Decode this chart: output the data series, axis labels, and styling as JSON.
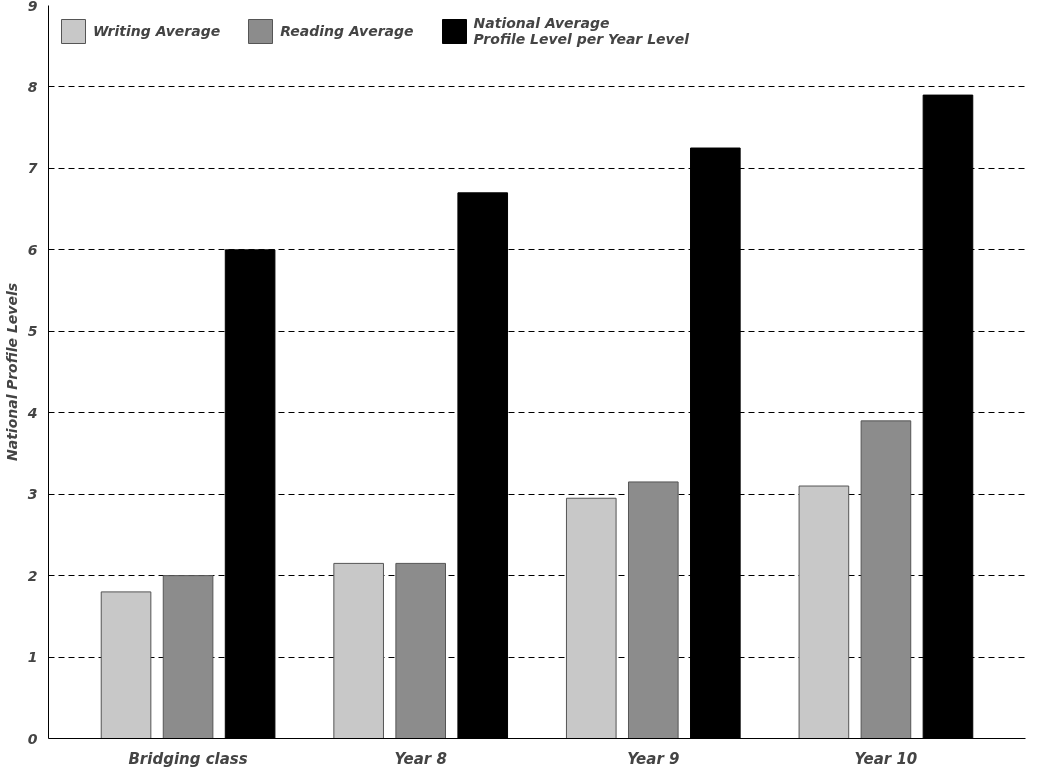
{
  "chart_data": {
    "type": "bar",
    "ylabel": "National Profile Levels",
    "categories": [
      "Bridging class",
      "Year 8",
      "Year 9",
      "Year 10"
    ],
    "series": [
      {
        "name": "Writing Average",
        "color": "#c8c8c8",
        "values": [
          1.8,
          2.15,
          2.95,
          3.1
        ]
      },
      {
        "name": "Reading Average",
        "color": "#8c8c8c",
        "values": [
          2.0,
          2.15,
          3.15,
          3.9
        ]
      },
      {
        "name": "National Average\nProfile Level per Year Level",
        "color": "#000000",
        "values": [
          6.0,
          6.7,
          7.25,
          7.9
        ]
      }
    ],
    "ylim": [
      0,
      9
    ],
    "yticks": [
      0,
      1,
      2,
      3,
      4,
      5,
      6,
      7,
      8,
      9
    ],
    "grid": "y",
    "legend": "top left"
  }
}
